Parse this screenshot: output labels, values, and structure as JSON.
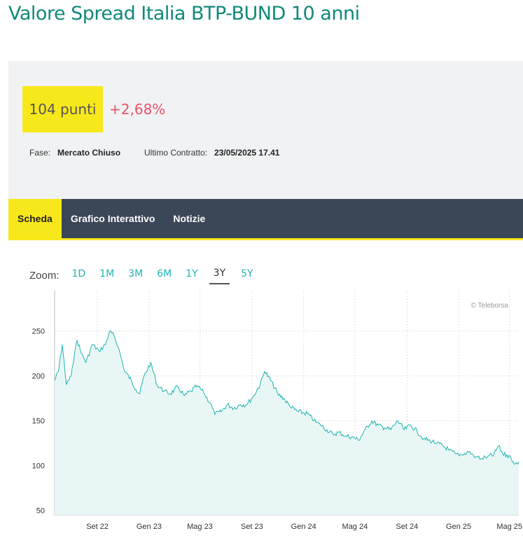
{
  "page": {
    "title": "Valore Spread Italia BTP-BUND 10 anni"
  },
  "quote": {
    "price": "104 punti",
    "change": "+2,68%",
    "phase_label": "Fase:",
    "phase_value": "Mercato Chiuso",
    "last_label": "Ultimo Contratto:",
    "last_value": "23/05/2025 17.41"
  },
  "tabs": [
    {
      "label": "Scheda",
      "active": true
    },
    {
      "label": "Grafico Interattivo",
      "active": false
    },
    {
      "label": "Notizie",
      "active": false
    }
  ],
  "zoom": {
    "label": "Zoom:",
    "options": [
      "1D",
      "1M",
      "3M",
      "6M",
      "1Y",
      "3Y",
      "5Y"
    ],
    "selected": "3Y"
  },
  "colors": {
    "accent_title": "#10897a",
    "badge_yellow": "#f7e81b",
    "change_positive": "#e9526a",
    "nav_bg": "#3b4656",
    "line": "#20b4b0",
    "area_fill": "#e8f7f6"
  },
  "chart_data": {
    "type": "area",
    "credit": "© Teleborsa",
    "xlabel": "",
    "ylabel": "",
    "x_range": [
      "2022-05-23",
      "2025-05-23"
    ],
    "ylim": [
      45,
      295
    ],
    "y_ticks": [
      50,
      100,
      150,
      200,
      250
    ],
    "x_ticks": [
      {
        "label": "Set 22",
        "date": "2022-09-01"
      },
      {
        "label": "Gen 23",
        "date": "2023-01-01"
      },
      {
        "label": "Mag 23",
        "date": "2023-05-01"
      },
      {
        "label": "Set 23",
        "date": "2023-09-01"
      },
      {
        "label": "Gen 24",
        "date": "2024-01-01"
      },
      {
        "label": "Mag 24",
        "date": "2024-05-01"
      },
      {
        "label": "Set 24",
        "date": "2024-09-01"
      },
      {
        "label": "Gen 25",
        "date": "2025-01-01"
      },
      {
        "label": "Mag 25",
        "date": "2025-05-01"
      }
    ],
    "grid": true,
    "series": [
      {
        "points": [
          [
            "2022-05-23",
            195
          ],
          [
            "2022-06-01",
            205
          ],
          [
            "2022-06-10",
            235
          ],
          [
            "2022-06-20",
            190
          ],
          [
            "2022-07-01",
            200
          ],
          [
            "2022-07-15",
            240
          ],
          [
            "2022-07-25",
            225
          ],
          [
            "2022-08-05",
            215
          ],
          [
            "2022-08-20",
            235
          ],
          [
            "2022-09-05",
            228
          ],
          [
            "2022-09-20",
            235
          ],
          [
            "2022-09-30",
            250
          ],
          [
            "2022-10-10",
            245
          ],
          [
            "2022-10-20",
            232
          ],
          [
            "2022-11-05",
            205
          ],
          [
            "2022-11-20",
            195
          ],
          [
            "2022-12-01",
            185
          ],
          [
            "2022-12-10",
            180
          ],
          [
            "2022-12-20",
            200
          ],
          [
            "2023-01-05",
            215
          ],
          [
            "2023-01-20",
            190
          ],
          [
            "2023-02-05",
            183
          ],
          [
            "2023-02-20",
            180
          ],
          [
            "2023-03-10",
            188
          ],
          [
            "2023-03-25",
            178
          ],
          [
            "2023-04-10",
            183
          ],
          [
            "2023-04-25",
            189
          ],
          [
            "2023-05-10",
            181
          ],
          [
            "2023-05-25",
            170
          ],
          [
            "2023-06-05",
            157
          ],
          [
            "2023-06-20",
            160
          ],
          [
            "2023-07-05",
            168
          ],
          [
            "2023-07-20",
            164
          ],
          [
            "2023-08-05",
            168
          ],
          [
            "2023-08-20",
            168
          ],
          [
            "2023-09-05",
            178
          ],
          [
            "2023-09-20",
            190
          ],
          [
            "2023-10-01",
            205
          ],
          [
            "2023-10-15",
            195
          ],
          [
            "2023-11-01",
            180
          ],
          [
            "2023-11-15",
            175
          ],
          [
            "2023-12-01",
            165
          ],
          [
            "2023-12-20",
            160
          ],
          [
            "2024-01-10",
            158
          ],
          [
            "2024-01-25",
            150
          ],
          [
            "2024-02-10",
            145
          ],
          [
            "2024-02-25",
            140
          ],
          [
            "2024-03-10",
            135
          ],
          [
            "2024-03-25",
            137
          ],
          [
            "2024-04-10",
            133
          ],
          [
            "2024-04-25",
            132
          ],
          [
            "2024-05-10",
            128
          ],
          [
            "2024-05-25",
            140
          ],
          [
            "2024-06-10",
            150
          ],
          [
            "2024-06-25",
            145
          ],
          [
            "2024-07-10",
            142
          ],
          [
            "2024-07-25",
            140
          ],
          [
            "2024-08-10",
            150
          ],
          [
            "2024-08-25",
            140
          ],
          [
            "2024-09-10",
            145
          ],
          [
            "2024-09-25",
            138
          ],
          [
            "2024-10-10",
            130
          ],
          [
            "2024-10-25",
            128
          ],
          [
            "2024-11-10",
            125
          ],
          [
            "2024-11-25",
            122
          ],
          [
            "2024-12-10",
            117
          ],
          [
            "2024-12-25",
            113
          ],
          [
            "2025-01-10",
            112
          ],
          [
            "2025-01-25",
            115
          ],
          [
            "2025-02-10",
            110
          ],
          [
            "2025-02-25",
            108
          ],
          [
            "2025-03-10",
            110
          ],
          [
            "2025-03-25",
            112
          ],
          [
            "2025-04-05",
            122
          ],
          [
            "2025-04-15",
            113
          ],
          [
            "2025-04-25",
            112
          ],
          [
            "2025-05-05",
            108
          ],
          [
            "2025-05-15",
            102
          ],
          [
            "2025-05-23",
            104
          ]
        ]
      }
    ]
  }
}
